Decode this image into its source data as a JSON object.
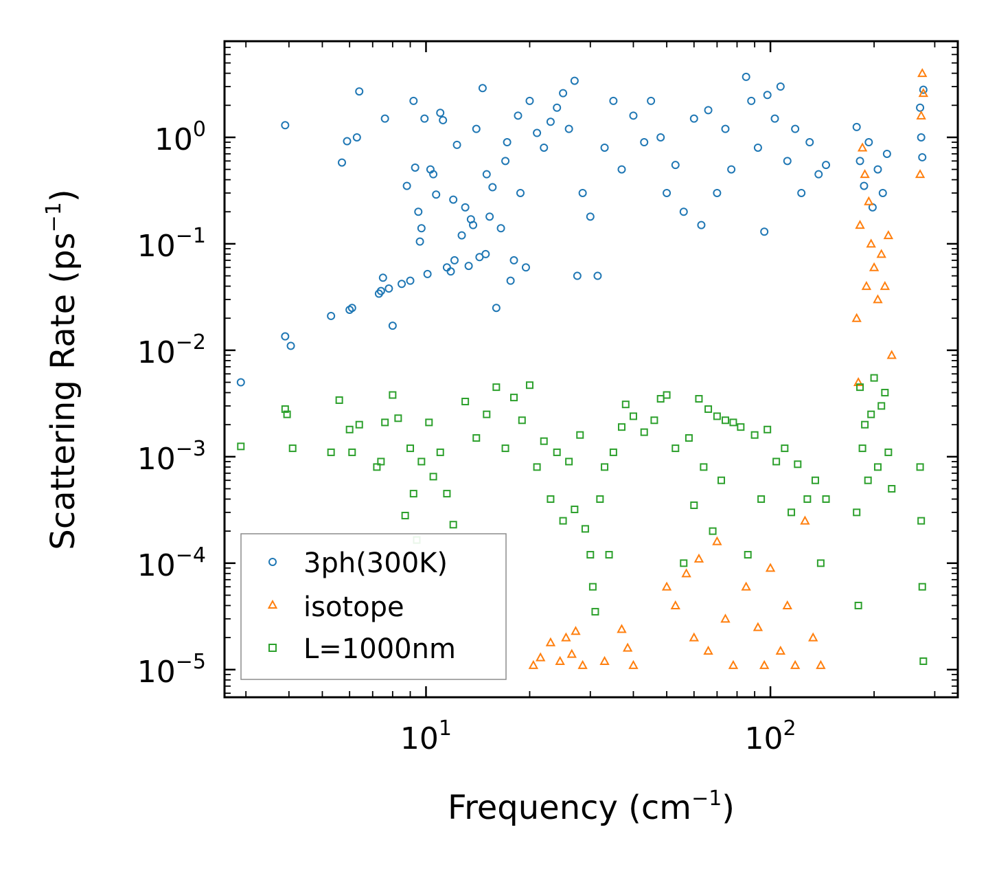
{
  "chart_data": {
    "type": "scatter",
    "xscale": "log",
    "yscale": "log",
    "xlim": [
      2.6,
      350
    ],
    "ylim": [
      5.5e-06,
      8.0
    ],
    "xlabel": {
      "main": "Frequency (cm",
      "sup": "−1",
      "close": ")"
    },
    "ylabel": {
      "main": "Scattering Rate (ps",
      "sup": "−1",
      "close": ")"
    },
    "x_ticks": [
      {
        "value": 10,
        "base": "10",
        "exp": "1"
      },
      {
        "value": 100,
        "base": "10",
        "exp": "2"
      }
    ],
    "y_ticks": [
      {
        "value": 1,
        "base": "10",
        "exp": "0"
      },
      {
        "value": 0.1,
        "base": "10",
        "exp": "−1"
      },
      {
        "value": 0.01,
        "base": "10",
        "exp": "−2"
      },
      {
        "value": 0.001,
        "base": "10",
        "exp": "−3"
      },
      {
        "value": 0.0001,
        "base": "10",
        "exp": "−4"
      },
      {
        "value": 1e-05,
        "base": "10",
        "exp": "−5"
      }
    ],
    "legend_position": "lower-left",
    "series": [
      {
        "name": "3ph(300K)",
        "marker": "circle",
        "color": "#1f77b4",
        "points": [
          [
            2.9,
            0.005
          ],
          [
            3.9,
            1.3
          ],
          [
            3.9,
            0.0135
          ],
          [
            4.05,
            0.011
          ],
          [
            5.3,
            0.021
          ],
          [
            5.7,
            0.58
          ],
          [
            5.9,
            0.92
          ],
          [
            6.0,
            0.024
          ],
          [
            6.1,
            0.025
          ],
          [
            6.3,
            1.0
          ],
          [
            6.4,
            2.7
          ],
          [
            7.3,
            0.034
          ],
          [
            7.4,
            0.036
          ],
          [
            7.5,
            0.048
          ],
          [
            7.6,
            1.5
          ],
          [
            7.8,
            0.038
          ],
          [
            8.0,
            0.017
          ],
          [
            8.5,
            0.042
          ],
          [
            8.8,
            0.35
          ],
          [
            9.0,
            0.045
          ],
          [
            9.2,
            2.2
          ],
          [
            9.3,
            0.52
          ],
          [
            9.5,
            0.2
          ],
          [
            9.6,
            0.105
          ],
          [
            9.7,
            0.14
          ],
          [
            9.9,
            1.5
          ],
          [
            10.1,
            0.052
          ],
          [
            10.3,
            0.5
          ],
          [
            10.5,
            0.45
          ],
          [
            10.7,
            0.29
          ],
          [
            11.0,
            1.7
          ],
          [
            11.2,
            1.45
          ],
          [
            11.5,
            0.06
          ],
          [
            11.8,
            0.055
          ],
          [
            12.0,
            0.26
          ],
          [
            12.1,
            0.07
          ],
          [
            12.3,
            0.85
          ],
          [
            12.7,
            0.12
          ],
          [
            13.0,
            0.22
          ],
          [
            13.3,
            0.062
          ],
          [
            13.5,
            0.17
          ],
          [
            13.7,
            0.15
          ],
          [
            14.0,
            1.2
          ],
          [
            14.3,
            0.075
          ],
          [
            14.6,
            2.9
          ],
          [
            14.9,
            0.08
          ],
          [
            15.0,
            0.45
          ],
          [
            15.3,
            0.18
          ],
          [
            15.6,
            0.34
          ],
          [
            16.0,
            0.025
          ],
          [
            16.5,
            0.14
          ],
          [
            17.0,
            0.6
          ],
          [
            17.2,
            0.9
          ],
          [
            17.6,
            0.045
          ],
          [
            18.0,
            0.07
          ],
          [
            18.5,
            1.6
          ],
          [
            18.8,
            0.3
          ],
          [
            19.5,
            0.06
          ],
          [
            20.0,
            2.2
          ],
          [
            21.0,
            1.1
          ],
          [
            22.0,
            0.8
          ],
          [
            23.0,
            1.4
          ],
          [
            24.0,
            1.9
          ],
          [
            25.0,
            2.6
          ],
          [
            26.0,
            1.2
          ],
          [
            27.0,
            3.4
          ],
          [
            27.5,
            0.05
          ],
          [
            28.5,
            0.3
          ],
          [
            30.0,
            0.18
          ],
          [
            31.5,
            0.05
          ],
          [
            33.0,
            0.8
          ],
          [
            35.0,
            2.2
          ],
          [
            37.0,
            0.5
          ],
          [
            40.0,
            1.6
          ],
          [
            43.0,
            0.9
          ],
          [
            45.0,
            2.2
          ],
          [
            48.0,
            1.0
          ],
          [
            50.0,
            0.3
          ],
          [
            53.0,
            0.55
          ],
          [
            56.0,
            0.2
          ],
          [
            60.0,
            1.5
          ],
          [
            63.0,
            0.15
          ],
          [
            66.0,
            1.8
          ],
          [
            70.0,
            0.3
          ],
          [
            74.0,
            1.2
          ],
          [
            77.0,
            0.5
          ],
          [
            85.0,
            3.7
          ],
          [
            88.0,
            2.2
          ],
          [
            92.0,
            0.8
          ],
          [
            96.0,
            0.13
          ],
          [
            98.0,
            2.5
          ],
          [
            103.0,
            1.5
          ],
          [
            107.0,
            3.0
          ],
          [
            112.0,
            0.6
          ],
          [
            118.0,
            1.2
          ],
          [
            123.0,
            0.3
          ],
          [
            130.0,
            0.9
          ],
          [
            138.0,
            0.45
          ],
          [
            145.0,
            0.55
          ],
          [
            178.0,
            1.25
          ],
          [
            182.0,
            0.6
          ],
          [
            187.0,
            0.35
          ],
          [
            193.0,
            0.9
          ],
          [
            198.0,
            0.22
          ],
          [
            205.0,
            0.5
          ],
          [
            212.0,
            0.3
          ],
          [
            218.0,
            0.7
          ],
          [
            272.0,
            1.9
          ],
          [
            274.0,
            1.0
          ],
          [
            276.0,
            0.65
          ],
          [
            278.0,
            2.8
          ]
        ]
      },
      {
        "name": "isotope",
        "marker": "triangle",
        "color": "#ff7f0e",
        "points": [
          [
            20.5,
            1.1e-05
          ],
          [
            21.5,
            1.3e-05
          ],
          [
            23.0,
            1.8e-05
          ],
          [
            24.5,
            1.2e-05
          ],
          [
            25.5,
            2e-05
          ],
          [
            26.5,
            1.4e-05
          ],
          [
            27.2,
            2.3e-05
          ],
          [
            28.5,
            1.1e-05
          ],
          [
            33.0,
            1.2e-05
          ],
          [
            37.0,
            2.4e-05
          ],
          [
            38.5,
            1.6e-05
          ],
          [
            40.0,
            1.1e-05
          ],
          [
            50.0,
            6e-05
          ],
          [
            53.0,
            4e-05
          ],
          [
            57.0,
            8e-05
          ],
          [
            60.0,
            2e-05
          ],
          [
            62.0,
            0.00011
          ],
          [
            66.0,
            1.5e-05
          ],
          [
            70.0,
            0.00016
          ],
          [
            74.0,
            3e-05
          ],
          [
            78.0,
            1.1e-05
          ],
          [
            85.0,
            6e-05
          ],
          [
            92.0,
            2.5e-05
          ],
          [
            96.0,
            1.1e-05
          ],
          [
            100.0,
            9e-05
          ],
          [
            107.0,
            1.5e-05
          ],
          [
            112.0,
            4e-05
          ],
          [
            118.0,
            1.1e-05
          ],
          [
            126.0,
            0.00025
          ],
          [
            133.0,
            2e-05
          ],
          [
            140.0,
            1.1e-05
          ],
          [
            178.0,
            0.02
          ],
          [
            180.0,
            0.005
          ],
          [
            182.0,
            0.15
          ],
          [
            185.0,
            0.8
          ],
          [
            188.0,
            0.45
          ],
          [
            190.0,
            0.04
          ],
          [
            193.0,
            0.25
          ],
          [
            196.0,
            0.1
          ],
          [
            200.0,
            0.06
          ],
          [
            205.0,
            0.03
          ],
          [
            210.0,
            0.08
          ],
          [
            215.0,
            0.04
          ],
          [
            220.0,
            0.12
          ],
          [
            225.0,
            0.009
          ],
          [
            272.0,
            0.45
          ],
          [
            274.0,
            1.6
          ],
          [
            276.0,
            4.0
          ],
          [
            278.0,
            2.6
          ]
        ]
      },
      {
        "name": "L=1000nm",
        "marker": "square",
        "color": "#2ca02c",
        "points": [
          [
            2.9,
            0.00125
          ],
          [
            3.9,
            0.0028
          ],
          [
            3.95,
            0.0025
          ],
          [
            4.1,
            0.0012
          ],
          [
            5.3,
            0.0011
          ],
          [
            5.6,
            0.0034
          ],
          [
            6.0,
            0.0018
          ],
          [
            6.1,
            0.0011
          ],
          [
            6.4,
            0.002
          ],
          [
            7.2,
            0.0008
          ],
          [
            7.4,
            0.0009
          ],
          [
            7.6,
            0.0021
          ],
          [
            8.0,
            0.0038
          ],
          [
            8.3,
            0.0023
          ],
          [
            8.7,
            0.00028
          ],
          [
            9.0,
            0.0012
          ],
          [
            9.2,
            0.00045
          ],
          [
            9.4,
            0.000165
          ],
          [
            9.7,
            0.0009
          ],
          [
            10.2,
            0.0021
          ],
          [
            10.5,
            0.00065
          ],
          [
            11.0,
            0.0011
          ],
          [
            11.5,
            0.00045
          ],
          [
            12.0,
            0.00023
          ],
          [
            13.0,
            0.0033
          ],
          [
            14.0,
            0.0015
          ],
          [
            15.0,
            0.0025
          ],
          [
            16.0,
            0.0045
          ],
          [
            17.0,
            0.0012
          ],
          [
            18.0,
            0.0036
          ],
          [
            19.0,
            0.0022
          ],
          [
            20.0,
            0.0047
          ],
          [
            21.0,
            0.0008
          ],
          [
            22.0,
            0.0014
          ],
          [
            23.0,
            0.0004
          ],
          [
            24.0,
            0.0011
          ],
          [
            25.0,
            0.00025
          ],
          [
            26.0,
            0.0009
          ],
          [
            27.0,
            0.00032
          ],
          [
            28.0,
            0.0016
          ],
          [
            29.0,
            0.00021
          ],
          [
            30.0,
            0.00012
          ],
          [
            30.5,
            6e-05
          ],
          [
            31.0,
            3.5e-05
          ],
          [
            32.0,
            0.0004
          ],
          [
            33.0,
            0.0008
          ],
          [
            34.0,
            0.00012
          ],
          [
            35.0,
            0.0011
          ],
          [
            37.0,
            0.0019
          ],
          [
            38.0,
            0.0031
          ],
          [
            40.0,
            0.0024
          ],
          [
            43.0,
            0.0017
          ],
          [
            46.0,
            0.0022
          ],
          [
            48.0,
            0.0035
          ],
          [
            50.0,
            0.0038
          ],
          [
            53.0,
            0.0012
          ],
          [
            56.0,
            0.0001
          ],
          [
            58.0,
            0.0015
          ],
          [
            60.0,
            0.00035
          ],
          [
            62.0,
            0.0035
          ],
          [
            64.0,
            0.0008
          ],
          [
            66.0,
            0.0028
          ],
          [
            68.0,
            0.0002
          ],
          [
            70.0,
            0.0024
          ],
          [
            72.0,
            0.0006
          ],
          [
            74.0,
            0.0022
          ],
          [
            78.0,
            0.0021
          ],
          [
            82.0,
            0.0019
          ],
          [
            86.0,
            0.00012
          ],
          [
            90.0,
            0.0016
          ],
          [
            94.0,
            0.0004
          ],
          [
            98.0,
            0.0018
          ],
          [
            104.0,
            0.0009
          ],
          [
            110.0,
            0.0012
          ],
          [
            115.0,
            0.0003
          ],
          [
            120.0,
            0.00085
          ],
          [
            128.0,
            0.0004
          ],
          [
            135.0,
            0.0006
          ],
          [
            140.0,
            0.0001
          ],
          [
            145.0,
            0.0004
          ],
          [
            178.0,
            0.0003
          ],
          [
            180.0,
            4e-05
          ],
          [
            182.0,
            0.0045
          ],
          [
            185.0,
            0.0012
          ],
          [
            188.0,
            0.002
          ],
          [
            192.0,
            0.0006
          ],
          [
            196.0,
            0.0025
          ],
          [
            200.0,
            0.0055
          ],
          [
            205.0,
            0.0008
          ],
          [
            210.0,
            0.003
          ],
          [
            215.0,
            0.004
          ],
          [
            220.0,
            0.0011
          ],
          [
            225.0,
            0.0005
          ],
          [
            272.0,
            0.0008
          ],
          [
            274.0,
            0.00025
          ],
          [
            276.0,
            6e-05
          ],
          [
            278.0,
            1.2e-05
          ]
        ]
      }
    ]
  }
}
